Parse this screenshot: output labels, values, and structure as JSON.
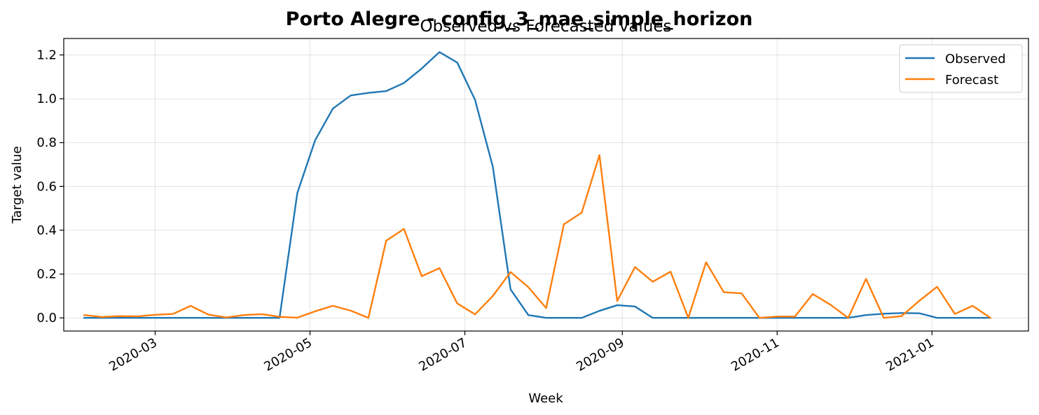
{
  "chart_data": {
    "type": "line",
    "suptitle": "Porto Alegre - config_3_mae_simple_horizon",
    "title": "Observed vs Forecasted values",
    "xlabel": "Week",
    "ylabel": "Target value",
    "ylim": [
      -0.06,
      1.275
    ],
    "xlim": [
      "2020-01-25",
      "2021-02-08"
    ],
    "grid": true,
    "legend_position": "top-right",
    "x_ticks": [
      "2020-03-01",
      "2020-05-01",
      "2020-07-01",
      "2020-09-01",
      "2020-11-01",
      "2021-01-01"
    ],
    "x_tick_labels": [
      "2020-03",
      "2020-05",
      "2020-07",
      "2020-09",
      "2020-11",
      "2021-01"
    ],
    "y_ticks": [
      0.0,
      0.2,
      0.4,
      0.6,
      0.8,
      1.0,
      1.2
    ],
    "y_tick_labels": [
      "0.0",
      "0.2",
      "0.4",
      "0.6",
      "0.8",
      "1.0",
      "1.2"
    ],
    "x": [
      "2020-02-02",
      "2020-02-09",
      "2020-02-16",
      "2020-02-23",
      "2020-03-01",
      "2020-03-08",
      "2020-03-15",
      "2020-03-22",
      "2020-03-29",
      "2020-04-05",
      "2020-04-12",
      "2020-04-19",
      "2020-04-26",
      "2020-05-03",
      "2020-05-10",
      "2020-05-17",
      "2020-05-24",
      "2020-05-31",
      "2020-06-07",
      "2020-06-14",
      "2020-06-21",
      "2020-06-28",
      "2020-07-05",
      "2020-07-12",
      "2020-07-19",
      "2020-07-26",
      "2020-08-02",
      "2020-08-09",
      "2020-08-16",
      "2020-08-23",
      "2020-08-30",
      "2020-09-06",
      "2020-09-13",
      "2020-09-20",
      "2020-09-27",
      "2020-10-04",
      "2020-10-11",
      "2020-10-18",
      "2020-10-25",
      "2020-11-01",
      "2020-11-08",
      "2020-11-15",
      "2020-11-22",
      "2020-11-29",
      "2020-12-06",
      "2020-12-13",
      "2020-12-20",
      "2020-12-27",
      "2021-01-03",
      "2021-01-10",
      "2021-01-17",
      "2021-01-24"
    ],
    "series": [
      {
        "name": "Observed",
        "color": "#1f77b4",
        "values": [
          0,
          0,
          0,
          0,
          0,
          0,
          0,
          0,
          0,
          0,
          0,
          0,
          0.57,
          0.81,
          0.955,
          1.015,
          1.027,
          1.035,
          1.072,
          1.138,
          1.213,
          1.165,
          0.995,
          0.69,
          0.13,
          0.013,
          0,
          0,
          0,
          0.032,
          0.058,
          0.052,
          0,
          0,
          0,
          0,
          0,
          0,
          0,
          0,
          0,
          0,
          0,
          0,
          0.013,
          0.019,
          0.022,
          0.021,
          0,
          0,
          0,
          0
        ]
      },
      {
        "name": "Forecast",
        "color": "#ff7f0e",
        "values": [
          0.013,
          0.004,
          0.008,
          0.007,
          0.014,
          0.018,
          0.055,
          0.015,
          0.002,
          0.013,
          0.017,
          0.005,
          0.001,
          0.03,
          0.055,
          0.033,
          0,
          0.352,
          0.406,
          0.19,
          0.227,
          0.066,
          0.016,
          0.1,
          0.209,
          0.14,
          0.045,
          0.427,
          0.48,
          0.743,
          0.077,
          0.232,
          0.165,
          0.211,
          0,
          0.254,
          0.117,
          0.112,
          0,
          0.006,
          0.006,
          0.109,
          0.06,
          0,
          0.178,
          0,
          0.008,
          0.078,
          0.142,
          0.018,
          0.055,
          0
        ]
      }
    ]
  }
}
